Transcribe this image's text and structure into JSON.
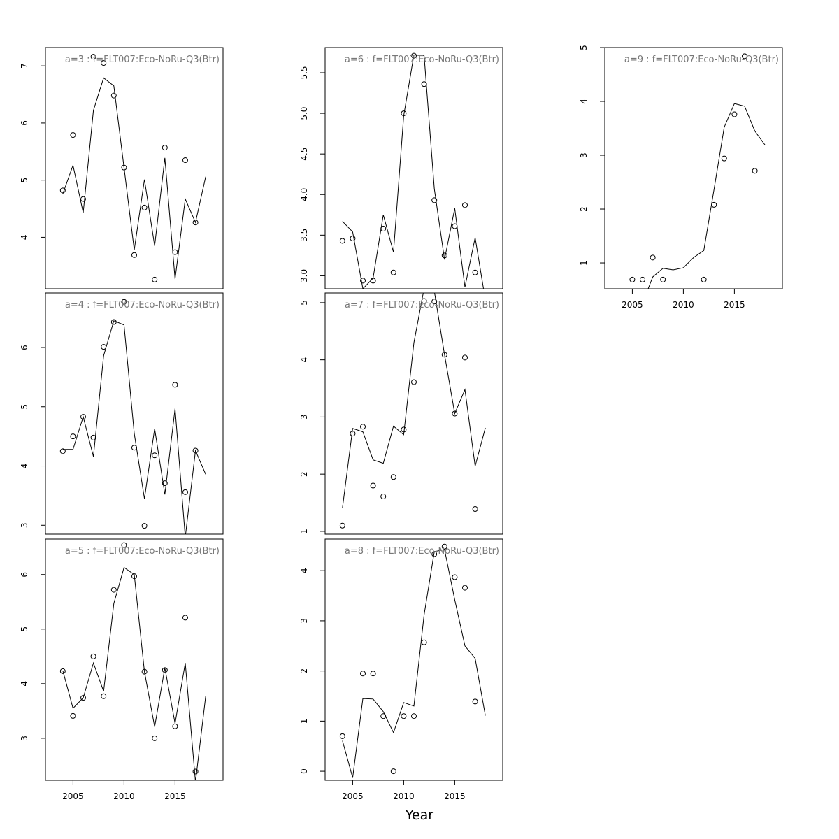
{
  "xlabel": "Year",
  "chart_data": [
    {
      "type": "line",
      "title": "a=3  :  f=FLT007:Eco-NoRu-Q3(Btr)",
      "x": [
        2004,
        2005,
        2006,
        2007,
        2008,
        2009,
        2010,
        2011,
        2012,
        2013,
        2014,
        2015,
        2016,
        2017,
        2018
      ],
      "xlim": [
        2002.3,
        2019.7
      ],
      "ylim": [
        3.1,
        7.32
      ],
      "yticks": [
        4,
        5,
        6,
        7
      ],
      "series": [
        {
          "marker": "circle",
          "color": "#000000",
          "values": [
            4.82,
            5.79,
            4.67,
            7.16,
            7.05,
            6.48,
            5.22,
            3.69,
            4.52,
            3.26,
            5.57,
            3.74,
            5.35,
            4.26,
            null
          ]
        },
        {
          "marker": "line",
          "color": "#000000",
          "values": [
            4.76,
            5.26,
            4.43,
            6.22,
            6.79,
            6.65,
            5.22,
            3.78,
            5.01,
            3.85,
            5.39,
            3.27,
            4.67,
            4.26,
            5.06
          ]
        }
      ]
    },
    {
      "type": "line",
      "title": "a=4  :  f=FLT007:Eco-NoRu-Q3(Btr)",
      "x": [
        2004,
        2005,
        2006,
        2007,
        2008,
        2009,
        2010,
        2011,
        2012,
        2013,
        2014,
        2015,
        2016,
        2017,
        2018
      ],
      "xlim": [
        2002.3,
        2019.7
      ],
      "ylim": [
        2.85,
        6.92
      ],
      "yticks": [
        3,
        4,
        5,
        6
      ],
      "series": [
        {
          "marker": "circle",
          "color": "#000000",
          "values": [
            4.25,
            4.5,
            4.83,
            4.48,
            6.01,
            6.43,
            6.77,
            4.31,
            2.99,
            4.18,
            3.71,
            5.37,
            3.56,
            4.26,
            null
          ]
        },
        {
          "marker": "line",
          "color": "#000000",
          "values": [
            4.28,
            4.28,
            4.83,
            4.16,
            5.86,
            6.45,
            6.38,
            4.55,
            3.45,
            4.63,
            3.52,
            4.97,
            2.8,
            4.26,
            3.86
          ]
        }
      ]
    },
    {
      "type": "line",
      "title": "a=5  :  f=FLT007:Eco-NoRu-Q3(Btr)",
      "x": [
        2004,
        2005,
        2006,
        2007,
        2008,
        2009,
        2010,
        2011,
        2012,
        2013,
        2014,
        2015,
        2016,
        2017,
        2018
      ],
      "xlim": [
        2002.3,
        2019.7
      ],
      "xticks": [
        2005,
        2010,
        2015
      ],
      "ylim": [
        2.23,
        6.65
      ],
      "yticks": [
        3,
        4,
        5,
        6
      ],
      "series": [
        {
          "marker": "circle",
          "color": "#000000",
          "values": [
            4.23,
            3.41,
            3.74,
            4.5,
            3.77,
            5.72,
            6.54,
            5.97,
            4.22,
            3.0,
            4.25,
            3.22,
            5.21,
            2.39,
            null
          ]
        },
        {
          "marker": "line",
          "color": "#000000",
          "values": [
            4.24,
            3.55,
            3.74,
            4.38,
            3.86,
            5.47,
            6.13,
            6.0,
            4.22,
            3.21,
            4.29,
            3.27,
            4.38,
            2.2,
            3.77
          ]
        }
      ]
    },
    {
      "type": "line",
      "title": "a=6  :  f=FLT007:Eco-NoRu-Q3(Btr)",
      "x": [
        2004,
        2005,
        2006,
        2007,
        2008,
        2009,
        2010,
        2011,
        2012,
        2013,
        2014,
        2015,
        2016,
        2017,
        2018
      ],
      "xlim": [
        2002.3,
        2019.7
      ],
      "ylim": [
        2.84,
        5.81
      ],
      "yticks": [
        {
          "value": 3,
          "label": "3.0"
        },
        3.5,
        {
          "value": 4,
          "label": "4.0"
        },
        4.5,
        {
          "value": 5,
          "label": "5.0"
        },
        5.5
      ],
      "series": [
        {
          "marker": "circle",
          "color": "#000000",
          "values": [
            3.43,
            3.46,
            2.94,
            2.94,
            3.58,
            3.04,
            5.0,
            5.71,
            5.36,
            3.93,
            3.25,
            3.61,
            3.87,
            3.04,
            null
          ]
        },
        {
          "marker": "line",
          "color": "#000000",
          "values": [
            3.67,
            3.54,
            2.84,
            2.97,
            3.75,
            3.29,
            4.97,
            5.72,
            5.71,
            4.07,
            3.2,
            3.83,
            2.86,
            3.47,
            2.7
          ]
        }
      ]
    },
    {
      "type": "line",
      "title": "a=7  :  f=FLT007:Eco-NoRu-Q3(Btr)",
      "x": [
        2004,
        2005,
        2006,
        2007,
        2008,
        2009,
        2010,
        2011,
        2012,
        2013,
        2014,
        2015,
        2016,
        2017,
        2018
      ],
      "xlim": [
        2002.3,
        2019.7
      ],
      "ylim": [
        0.95,
        5.17
      ],
      "yticks": [
        1,
        2,
        3,
        4,
        5
      ],
      "series": [
        {
          "marker": "circle",
          "color": "#000000",
          "values": [
            1.1,
            2.71,
            2.83,
            1.8,
            1.61,
            1.95,
            2.78,
            3.61,
            5.03,
            5.02,
            4.09,
            3.06,
            4.04,
            1.39,
            null
          ]
        },
        {
          "marker": "line",
          "color": "#000000",
          "values": [
            1.41,
            2.8,
            2.74,
            2.25,
            2.19,
            2.84,
            2.69,
            4.3,
            5.25,
            5.2,
            4.09,
            3.06,
            3.48,
            2.14,
            2.81
          ]
        }
      ]
    },
    {
      "type": "line",
      "title": "a=8  :  f=FLT007:Eco-NoRu-Q3(Btr)",
      "x": [
        2004,
        2005,
        2006,
        2007,
        2008,
        2009,
        2010,
        2011,
        2012,
        2013,
        2014,
        2015,
        2016,
        2017,
        2018
      ],
      "xlim": [
        2002.3,
        2019.7
      ],
      "xticks": [
        2005,
        2010,
        2015
      ],
      "ylim": [
        -0.18,
        4.63
      ],
      "yticks": [
        0,
        1,
        2,
        3,
        4
      ],
      "series": [
        {
          "marker": "circle",
          "color": "#000000",
          "values": [
            0.7,
            null,
            1.95,
            1.95,
            1.1,
            0.0,
            1.1,
            1.1,
            2.57,
            4.33,
            4.48,
            3.87,
            3.66,
            1.39,
            null
          ]
        },
        {
          "marker": "line",
          "color": "#000000",
          "values": [
            0.61,
            -0.13,
            1.45,
            1.44,
            1.19,
            0.77,
            1.37,
            1.3,
            3.12,
            4.38,
            4.42,
            3.42,
            2.5,
            2.25,
            1.11
          ]
        }
      ]
    },
    {
      "type": "line",
      "title": "a=9  :  f=FLT007:Eco-NoRu-Q3(Btr)",
      "x": [
        2004,
        2005,
        2006,
        2007,
        2008,
        2009,
        2010,
        2011,
        2012,
        2013,
        2014,
        2015,
        2016,
        2017,
        2018
      ],
      "xlim": [
        2002.3,
        2019.7
      ],
      "xticks": [
        2005,
        2010,
        2015
      ],
      "ylim": [
        0.52,
        5.0
      ],
      "yticks": [
        1,
        2,
        3,
        4,
        5
      ],
      "series": [
        {
          "marker": "circle",
          "color": "#000000",
          "values": [
            null,
            0.69,
            0.69,
            1.1,
            0.69,
            null,
            null,
            null,
            0.69,
            2.08,
            2.94,
            3.76,
            4.84,
            2.71,
            null
          ]
        },
        {
          "marker": "line",
          "color": "#000000",
          "values": [
            null,
            null,
            0.25,
            0.74,
            0.9,
            0.87,
            0.91,
            1.1,
            1.23,
            2.36,
            3.52,
            3.96,
            3.91,
            3.45,
            3.19
          ]
        }
      ]
    }
  ]
}
